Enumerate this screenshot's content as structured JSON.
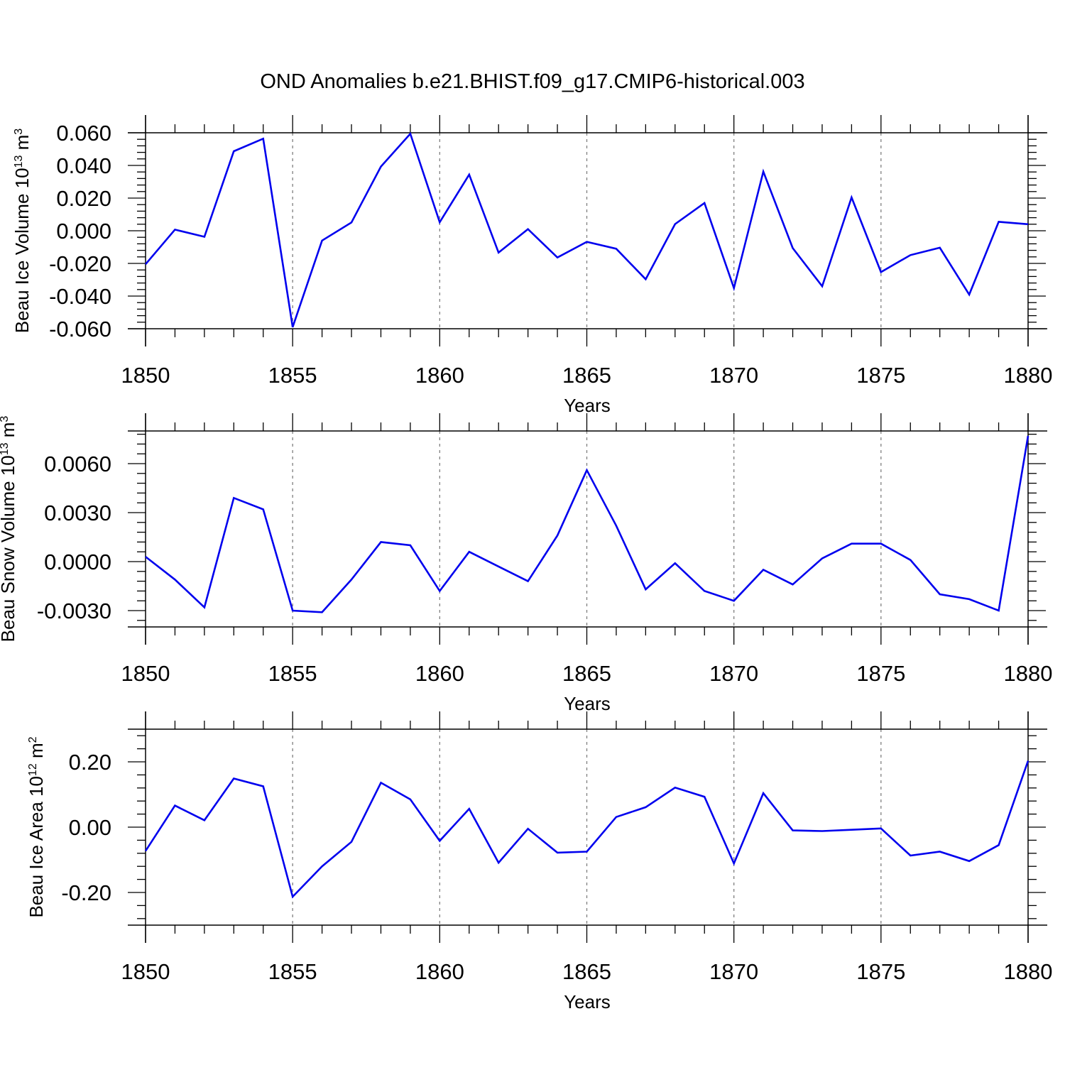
{
  "title": "OND Anomalies b.e21.BHIST.f09_g17.CMIP6-historical.003",
  "colors": {
    "line": "#0000ee",
    "axes": "#000000",
    "grid": "#7f7f7f"
  },
  "chart_data": [
    {
      "type": "line",
      "ylabel": {
        "main": "Beau Ice Volume 10",
        "sup1": "13",
        "mid": " m",
        "sup2": "3"
      },
      "xlabel": "Years",
      "xlim": [
        1850,
        1880
      ],
      "ylim": [
        -0.06,
        0.06
      ],
      "xticks": [
        1850,
        1855,
        1860,
        1865,
        1870,
        1875,
        1880
      ],
      "yticks": [
        -0.06,
        -0.04,
        -0.02,
        0.0,
        0.02,
        0.04,
        0.06
      ],
      "yticklabels": [
        "-0.060",
        "-0.040",
        "-0.020",
        "0.000",
        "0.020",
        "0.040",
        "0.060"
      ],
      "x": [
        1850,
        1851,
        1852,
        1853,
        1854,
        1855,
        1856,
        1857,
        1858,
        1859,
        1860,
        1861,
        1862,
        1863,
        1864,
        1865,
        1866,
        1867,
        1868,
        1869,
        1870,
        1871,
        1872,
        1873,
        1874,
        1875,
        1876,
        1877,
        1878,
        1879,
        1880
      ],
      "values": [
        -0.0205,
        0.0007,
        -0.0037,
        0.0487,
        0.0564,
        -0.059,
        -0.006,
        0.0051,
        0.0393,
        0.0594,
        0.0052,
        0.0344,
        -0.0134,
        0.001,
        -0.0164,
        -0.0068,
        -0.011,
        -0.0297,
        0.0041,
        0.017,
        -0.0351,
        0.0362,
        -0.0106,
        -0.034,
        0.0204,
        -0.0253,
        -0.0149,
        -0.0104,
        -0.0391,
        0.0055,
        0.004
      ]
    },
    {
      "type": "line",
      "ylabel": {
        "main": "Beau Snow Volume 10",
        "sup1": "13",
        "mid": " m",
        "sup2": "3"
      },
      "xlabel": "Years",
      "xlim": [
        1850,
        1880
      ],
      "ylim": [
        -0.004,
        0.008
      ],
      "xticks": [
        1850,
        1855,
        1860,
        1865,
        1870,
        1875,
        1880
      ],
      "yticks": [
        -0.003,
        0.0,
        0.003,
        0.006
      ],
      "yticklabels": [
        "-0.0030",
        "0.0000",
        "0.0030",
        "0.0060"
      ],
      "x": [
        1850,
        1851,
        1852,
        1853,
        1854,
        1855,
        1856,
        1857,
        1858,
        1859,
        1860,
        1861,
        1862,
        1863,
        1864,
        1865,
        1866,
        1867,
        1868,
        1869,
        1870,
        1871,
        1872,
        1873,
        1874,
        1875,
        1876,
        1877,
        1878,
        1879,
        1880
      ],
      "values": [
        0.0003,
        -0.0011,
        -0.0028,
        0.0039,
        0.0032,
        -0.003,
        -0.0031,
        -0.0011,
        0.0012,
        0.001,
        -0.0018,
        0.0006,
        -0.0003,
        -0.0012,
        0.0016,
        0.0056,
        0.0022,
        -0.0017,
        -0.0001,
        -0.0018,
        -0.0024,
        -0.0005,
        -0.0014,
        0.0002,
        0.0011,
        0.0011,
        0.0001,
        -0.002,
        -0.0023,
        -0.003,
        0.0077
      ]
    },
    {
      "type": "line",
      "ylabel": {
        "main": "Beau Ice Area 10",
        "sup1": "12",
        "mid": " m",
        "sup2": "2"
      },
      "xlabel": "Years",
      "xlim": [
        1850,
        1880
      ],
      "ylim": [
        -0.3,
        0.3
      ],
      "xticks": [
        1850,
        1855,
        1860,
        1865,
        1870,
        1875,
        1880
      ],
      "yticks": [
        -0.2,
        0.0,
        0.2
      ],
      "yticklabels": [
        "-0.20",
        "0.00",
        "0.20"
      ],
      "x": [
        1850,
        1851,
        1852,
        1853,
        1854,
        1855,
        1856,
        1857,
        1858,
        1859,
        1860,
        1861,
        1862,
        1863,
        1864,
        1865,
        1866,
        1867,
        1868,
        1869,
        1870,
        1871,
        1872,
        1873,
        1874,
        1875,
        1876,
        1877,
        1878,
        1879,
        1880
      ],
      "values": [
        -0.073,
        0.066,
        0.021,
        0.149,
        0.125,
        -0.213,
        -0.12,
        -0.045,
        0.136,
        0.085,
        -0.042,
        0.056,
        -0.109,
        -0.005,
        -0.078,
        -0.075,
        0.031,
        0.061,
        0.121,
        0.093,
        -0.111,
        0.104,
        -0.01,
        -0.012,
        -0.008,
        -0.004,
        -0.087,
        -0.075,
        -0.104,
        -0.055,
        0.203
      ]
    }
  ]
}
